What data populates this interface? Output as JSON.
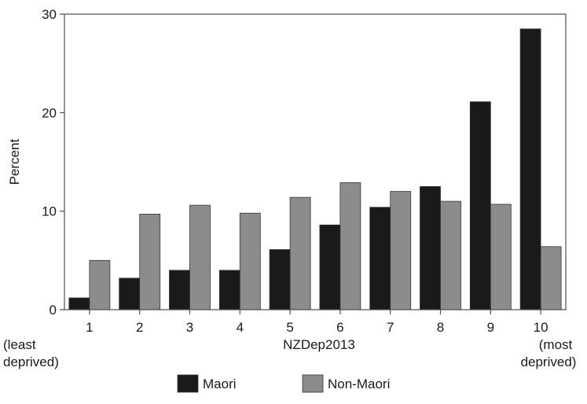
{
  "chart_data": {
    "type": "bar",
    "title": "",
    "xlabel": "NZDep2013",
    "ylabel": "Percent",
    "ylim": [
      0,
      30
    ],
    "yticks": [
      0,
      10,
      20,
      30
    ],
    "categories": [
      "1",
      "2",
      "3",
      "4",
      "5",
      "6",
      "7",
      "8",
      "9",
      "10"
    ],
    "category_sublabels": {
      "1": [
        "(least",
        "deprived)"
      ],
      "10": [
        "(most",
        "deprived)"
      ]
    },
    "series": [
      {
        "name": "Maori",
        "color": "#1a1a1a",
        "values": [
          1.2,
          3.2,
          4.0,
          4.0,
          6.1,
          8.6,
          10.4,
          12.5,
          21.1,
          28.5
        ]
      },
      {
        "name": "Non-Maori",
        "color": "#8c8c8c",
        "values": [
          5.0,
          9.7,
          10.6,
          9.8,
          11.4,
          12.9,
          12.0,
          11.0,
          10.7,
          6.4
        ]
      }
    ],
    "grid": false,
    "legend_position": "bottom"
  }
}
